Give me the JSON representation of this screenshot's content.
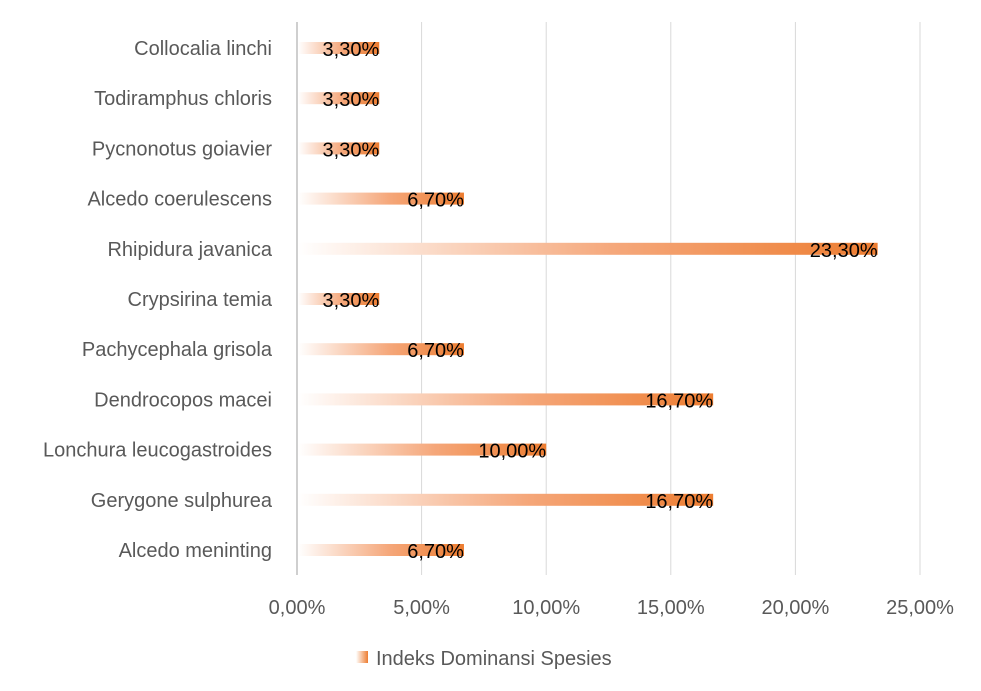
{
  "chart_data": {
    "type": "bar",
    "orientation": "horizontal",
    "title": "",
    "xlabel": "",
    "ylabel": "",
    "xlim": [
      0,
      25
    ],
    "grid": true,
    "legend_position": "bottom",
    "categories": [
      "Collocalia linchi",
      "Todiramphus chloris",
      "Pycnonotus goiavier",
      "Alcedo coerulescens",
      "Rhipidura javanica",
      "Crypsirina temia",
      "Pachycephala grisola",
      "Dendrocopos macei",
      "Lonchura leucogastroides",
      "Gerygone sulphurea",
      "Alcedo meninting"
    ],
    "series": [
      {
        "name": "Indeks Dominansi Spesies",
        "values": [
          3.3,
          3.3,
          3.3,
          6.7,
          23.3,
          3.3,
          6.7,
          16.7,
          10.0,
          16.7,
          6.7
        ],
        "labels": [
          "3,30%",
          "3,30%",
          "3,30%",
          "6,70%",
          "23,30%",
          "3,30%",
          "6,70%",
          "16,70%",
          "10,00%",
          "16,70%",
          "6,70%"
        ]
      }
    ],
    "ticks": [
      {
        "value": 0,
        "label": "0,00%"
      },
      {
        "value": 5,
        "label": "5,00%"
      },
      {
        "value": 10,
        "label": "10,00%"
      },
      {
        "value": 15,
        "label": "15,00%"
      },
      {
        "value": 20,
        "label": "20,00%"
      },
      {
        "value": 25,
        "label": "25,00%"
      }
    ],
    "colors": {
      "bar_end": "#ED7D31",
      "bar_start": "#FFFFFF",
      "grid": "#D9D9D9",
      "axis": "#BFBFBF"
    }
  }
}
